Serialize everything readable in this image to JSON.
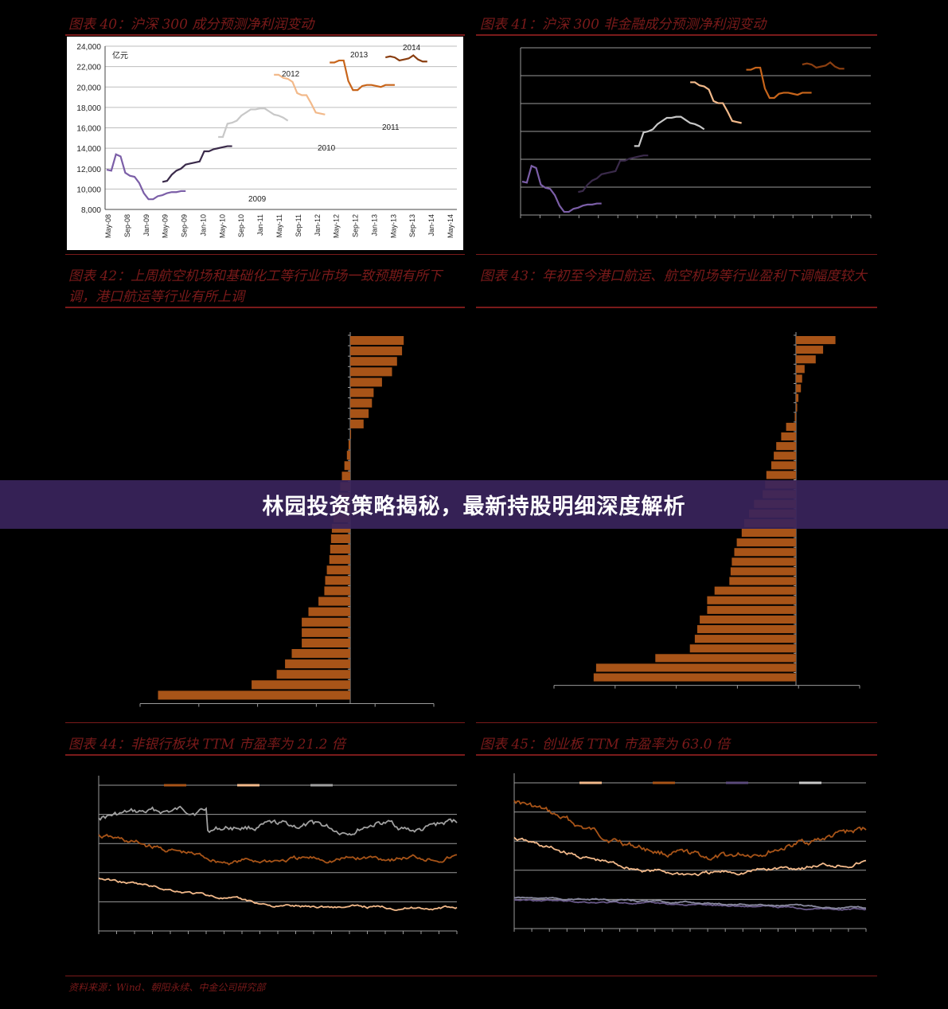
{
  "banner": {
    "title": "林园投资策略揭秘，最新持股明细深度解析"
  },
  "source": "资料来源：Wind、朝阳永续、中金公司研究部",
  "colors": {
    "title": "#7a1a1a",
    "c2009": "#7b5ea7",
    "c2010": "#3a2a4a",
    "c2011": "#c8c8c8",
    "c2012": "#f2b98a",
    "c2013": "#c8651b",
    "c2014": "#8a3e10",
    "bar": "#a85418"
  },
  "panels": [
    {
      "title": "图表 40：沪深 300 成分预测净利润变动"
    },
    {
      "title": "图表 41：沪深 300 非金融成分预测净利润变动"
    },
    {
      "title": "图表 42：上周航空机场和基础化工等行业市场一致预期有所下调，港口航运等行业有所上调"
    },
    {
      "title": "图表 43：年初至今港口航运、航空机场等行业盈利下调幅度较大"
    },
    {
      "title": "图表 44：非银行板块 TTM 市盈率为 21.2 倍"
    },
    {
      "title": "图表 45：创业板 TTM 市盈率为 63.0 倍"
    }
  ],
  "chart_data": [
    {
      "type": "line",
      "title": "图表 40：沪深 300 成分预测净利润变动",
      "ylabel": "亿元",
      "ylim": [
        8000,
        24000
      ],
      "yticks": [
        "24,000",
        "22,000",
        "20,000",
        "18,000",
        "16,000",
        "14,000",
        "12,000",
        "10,000",
        "8,000"
      ],
      "xticks": [
        "May-08",
        "Sep-08",
        "Jan-09",
        "May-09",
        "Sep-09",
        "Jan-10",
        "May-10",
        "Sep-10",
        "Jan-11",
        "May-11",
        "Sep-11",
        "Jan-12",
        "May-12",
        "Sep-12",
        "Jan-13",
        "May-13",
        "Sep-13",
        "Jan-14",
        "May-14"
      ],
      "series": [
        {
          "name": "2009",
          "start": 0,
          "values": [
            11900,
            11800,
            13400,
            13200,
            11600,
            11300,
            11200,
            10600,
            9600,
            9000,
            9000,
            9300,
            9400,
            9600,
            9700,
            9700,
            9800,
            9800
          ]
        },
        {
          "name": "2010",
          "start": 12,
          "values": [
            10700,
            10800,
            11400,
            11800,
            12000,
            12400,
            12500,
            12600,
            12700,
            13700,
            13700,
            13900,
            14000,
            14100,
            14200,
            14200
          ]
        },
        {
          "name": "2011",
          "start": 24,
          "values": [
            15100,
            15100,
            16400,
            16500,
            16700,
            17200,
            17500,
            17800,
            17800,
            17900,
            17900,
            17600,
            17300,
            17200,
            17000,
            16700
          ]
        },
        {
          "name": "2012",
          "start": 36,
          "values": [
            21200,
            21200,
            20900,
            20800,
            20500,
            19400,
            19200,
            19200,
            18400,
            17500,
            17400,
            17300
          ]
        },
        {
          "name": "2013",
          "start": 48,
          "values": [
            22400,
            22400,
            22600,
            22600,
            20600,
            19700,
            19700,
            20100,
            20200,
            20200,
            20100,
            20000,
            20200,
            20200,
            20200
          ]
        },
        {
          "name": "2014",
          "start": 60,
          "values": [
            22900,
            23000,
            22900,
            22600,
            22700,
            22800,
            23100,
            22700,
            22500,
            22500
          ]
        }
      ]
    },
    {
      "type": "line",
      "title": "图表 41：沪深 300 非金融成分预测净利润变动"
    },
    {
      "type": "bar",
      "title": "图表 42：上周航空机场和基础化工等行业市场一致预期有所下调，港口航运等行业有所上调",
      "values": [
        3.2,
        3.1,
        2.8,
        2.5,
        1.9,
        1.4,
        1.3,
        1.1,
        0.8,
        0.05,
        -0.1,
        -0.2,
        -0.35,
        -0.5,
        -0.6,
        -0.7,
        -0.9,
        -1.0,
        -1.1,
        -1.15,
        -1.2,
        -1.25,
        -1.4,
        -1.5,
        -1.55,
        -1.9,
        -2.5,
        -2.9,
        -2.9,
        -2.9,
        -3.5,
        -3.9,
        -4.4,
        -5.9,
        -11.5
      ]
    },
    {
      "type": "bar",
      "title": "图表 43：年初至今港口航运、航空机场等行业盈利下调幅度较大",
      "values": [
        1.6,
        1.1,
        0.8,
        0.35,
        0.25,
        0.2,
        0.1,
        0.05,
        -0.05,
        -0.4,
        -0.6,
        -0.8,
        -0.9,
        -1.0,
        -1.2,
        -1.25,
        -1.35,
        -1.7,
        -1.9,
        -2.1,
        -2.2,
        -2.4,
        -2.5,
        -2.6,
        -2.65,
        -2.7,
        -3.3,
        -3.6,
        -3.6,
        -3.9,
        -4.0,
        -4.1,
        -4.3,
        -5.7,
        -8.1,
        -8.2
      ]
    },
    {
      "type": "line",
      "title": "图表 44：非银行板块 TTM 市盈率为 21.2 倍"
    },
    {
      "type": "line",
      "title": "图表 45：创业板 TTM 市盈率为 63.0 倍"
    }
  ]
}
